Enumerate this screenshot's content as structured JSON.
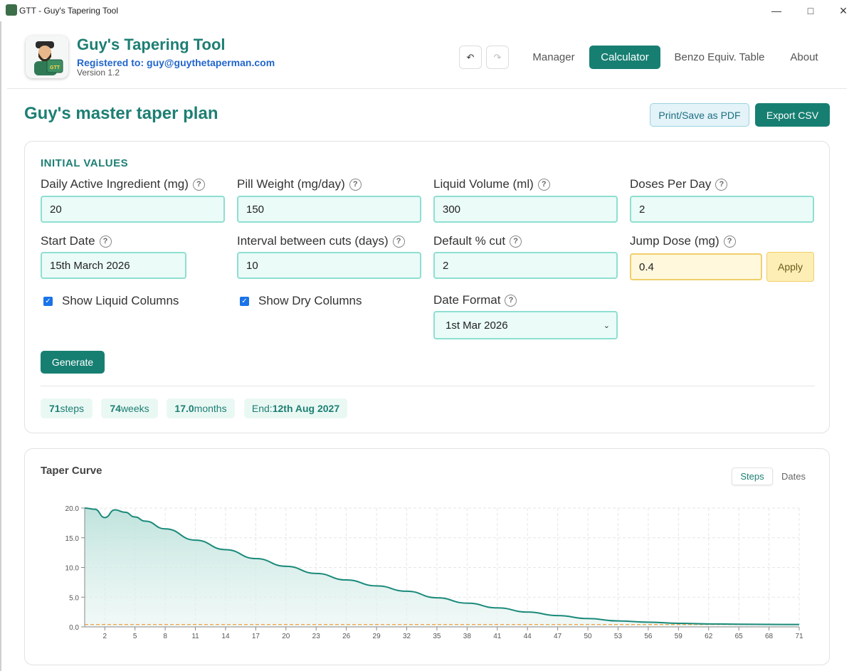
{
  "window": {
    "title": "GTT - Guy's Tapering Tool"
  },
  "header": {
    "app_name": "Guy's Tapering Tool",
    "registered": "Registered to: guy@guythetaperman.com",
    "version": "Version 1.2",
    "undo_icon": "undo-icon",
    "redo_icon": "redo-icon",
    "nav": [
      {
        "label": "Manager",
        "active": false
      },
      {
        "label": "Calculator",
        "active": true
      },
      {
        "label": "Benzo Equiv. Table",
        "active": false
      },
      {
        "label": "About",
        "active": false
      }
    ]
  },
  "page": {
    "title": "Guy's master taper plan",
    "print_label": "Print/Save as PDF",
    "export_label": "Export CSV"
  },
  "initial_values": {
    "section_title": "INITIAL VALUES",
    "fields": {
      "daily_active": {
        "label": "Daily Active Ingredient (mg)",
        "value": "20"
      },
      "pill_weight": {
        "label": "Pill Weight (mg/day)",
        "value": "150"
      },
      "liquid_volume": {
        "label": "Liquid Volume (ml)",
        "value": "300"
      },
      "doses_per_day": {
        "label": "Doses Per Day",
        "value": "2"
      },
      "start_date": {
        "label": "Start Date",
        "value": "15th March 2026"
      },
      "interval": {
        "label": "Interval between cuts (days)",
        "value": "10"
      },
      "default_cut": {
        "label": "Default % cut",
        "value": "2"
      },
      "jump_dose": {
        "label": "Jump Dose (mg)",
        "value": "0.4"
      }
    },
    "apply_label": "Apply",
    "help_glyph": "?",
    "show_liquid": {
      "label": "Show Liquid Columns",
      "checked": true
    },
    "show_dry": {
      "label": "Show Dry Columns",
      "checked": true
    },
    "date_format": {
      "label": "Date Format",
      "value": "1st Mar 2026"
    },
    "generate_label": "Generate",
    "stats": {
      "steps_value": "71",
      "steps_unit": "steps",
      "weeks_value": "74",
      "weeks_unit": "weeks",
      "months_value": "17.0",
      "months_unit": "months",
      "end_label": "End:",
      "end_value": "12th Aug 2027"
    }
  },
  "chart_panel": {
    "title": "Taper Curve",
    "toggle_steps": "Steps",
    "toggle_dates": "Dates"
  },
  "colors": {
    "accent": "#177f72",
    "curve": "#1a8a7a",
    "fill": "#d6ece8",
    "jump_line": "#f0a040"
  },
  "chart_data": {
    "type": "area",
    "title": "Taper Curve",
    "xlabel": "",
    "ylabel": "",
    "xlim": [
      0,
      71
    ],
    "ylim": [
      0,
      20
    ],
    "grid": true,
    "x_ticks": [
      2,
      5,
      8,
      11,
      14,
      17,
      20,
      23,
      26,
      29,
      32,
      35,
      38,
      41,
      44,
      47,
      50,
      53,
      56,
      59,
      62,
      65,
      68,
      71
    ],
    "y_ticks": [
      "0.0",
      "5.0",
      "10.0",
      "15.0",
      "20.0"
    ],
    "y_tick_values": [
      0,
      5,
      10,
      15,
      20
    ],
    "reference_line": {
      "value": 0.4
    },
    "series": [
      {
        "values": [
          [
            0,
            20.0
          ],
          [
            1,
            19.8
          ],
          [
            2,
            18.4
          ],
          [
            3,
            19.7
          ],
          [
            4,
            19.3
          ],
          [
            5,
            18.5
          ],
          [
            6,
            17.8
          ],
          [
            8,
            16.5
          ],
          [
            11,
            14.6
          ],
          [
            14,
            13.0
          ],
          [
            17,
            11.5
          ],
          [
            20,
            10.2
          ],
          [
            23,
            9.0
          ],
          [
            26,
            7.9
          ],
          [
            29,
            6.9
          ],
          [
            32,
            6.0
          ],
          [
            35,
            4.9
          ],
          [
            38,
            4.0
          ],
          [
            41,
            3.2
          ],
          [
            44,
            2.5
          ],
          [
            47,
            1.9
          ],
          [
            50,
            1.4
          ],
          [
            53,
            1.0
          ],
          [
            56,
            0.8
          ],
          [
            59,
            0.6
          ],
          [
            62,
            0.5
          ],
          [
            65,
            0.45
          ],
          [
            68,
            0.42
          ],
          [
            71,
            0.4
          ]
        ]
      }
    ]
  }
}
